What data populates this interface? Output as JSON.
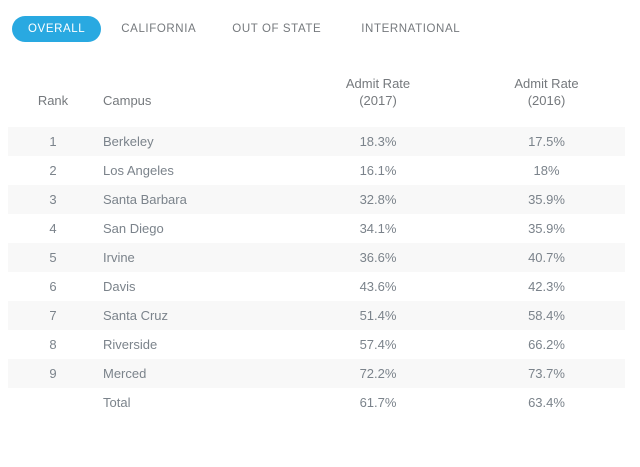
{
  "tabs": {
    "items": [
      {
        "label": "OVERALL",
        "active": true
      },
      {
        "label": "CALIFORNIA",
        "active": false
      },
      {
        "label": "OUT OF STATE",
        "active": false
      },
      {
        "label": "INTERNATIONAL",
        "active": false
      }
    ]
  },
  "table": {
    "columns": {
      "rank": "Rank",
      "campus": "Campus",
      "rate2017_line1": "Admit Rate",
      "rate2017_line2": "(2017)",
      "rate2016_line1": "Admit Rate",
      "rate2016_line2": "(2016)"
    },
    "rows": [
      {
        "rank": "1",
        "campus": "Berkeley",
        "rate_2017": "18.3%",
        "rate_2016": "17.5%"
      },
      {
        "rank": "2",
        "campus": "Los Angeles",
        "rate_2017": "16.1%",
        "rate_2016": "18%"
      },
      {
        "rank": "3",
        "campus": "Santa Barbara",
        "rate_2017": "32.8%",
        "rate_2016": "35.9%"
      },
      {
        "rank": "4",
        "campus": "San Diego",
        "rate_2017": "34.1%",
        "rate_2016": "35.9%"
      },
      {
        "rank": "5",
        "campus": "Irvine",
        "rate_2017": "36.6%",
        "rate_2016": "40.7%"
      },
      {
        "rank": "6",
        "campus": "Davis",
        "rate_2017": "43.6%",
        "rate_2016": "42.3%"
      },
      {
        "rank": "7",
        "campus": "Santa Cruz",
        "rate_2017": "51.4%",
        "rate_2016": "58.4%"
      },
      {
        "rank": "8",
        "campus": "Riverside",
        "rate_2017": "57.4%",
        "rate_2016": "66.2%"
      },
      {
        "rank": "9",
        "campus": "Merced",
        "rate_2017": "72.2%",
        "rate_2016": "73.7%"
      },
      {
        "rank": "",
        "campus": "Total",
        "rate_2017": "61.7%",
        "rate_2016": "63.4%"
      }
    ]
  },
  "colors": {
    "accent": "#29a9e1",
    "stripe": "#f8f8f8",
    "text": "#7b838b",
    "tab_text": "#75797d"
  }
}
